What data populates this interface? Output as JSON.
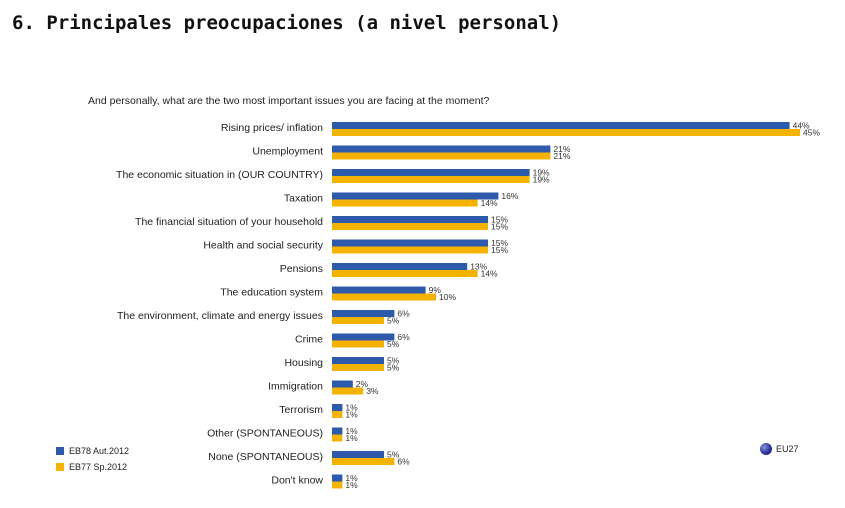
{
  "title": "6. Principales preocupaciones (a nivel personal)",
  "chart_data": {
    "type": "bar",
    "orientation": "horizontal",
    "title": "And personally, what are the two most important issues you are facing at the moment?",
    "categories": [
      "Rising prices/ inflation",
      "Unemployment",
      "The economic situation in (OUR COUNTRY)",
      "Taxation",
      "The financial situation of your household",
      "Health and social security",
      "Pensions",
      "The education system",
      "The environment, climate and energy issues",
      "Crime",
      "Housing",
      "Immigration",
      "Terrorism",
      "Other (SPONTANEOUS)",
      "None (SPONTANEOUS)",
      "Don't know"
    ],
    "series": [
      {
        "name": "EB78 Aut.2012",
        "color": "#2e5aac",
        "values": [
          44,
          21,
          19,
          16,
          15,
          15,
          13,
          9,
          6,
          6,
          5,
          2,
          1,
          1,
          5,
          1
        ]
      },
      {
        "name": "EB77 Sp.2012",
        "color": "#f5b301",
        "values": [
          45,
          21,
          19,
          14,
          15,
          15,
          14,
          10,
          5,
          5,
          5,
          3,
          1,
          1,
          6,
          1
        ]
      }
    ],
    "value_suffix": "%",
    "xlim": [
      0,
      45
    ],
    "grid": false,
    "legend_position": "bottom-left",
    "region_label": "EU27",
    "region_icon": "eu-globe-icon"
  }
}
